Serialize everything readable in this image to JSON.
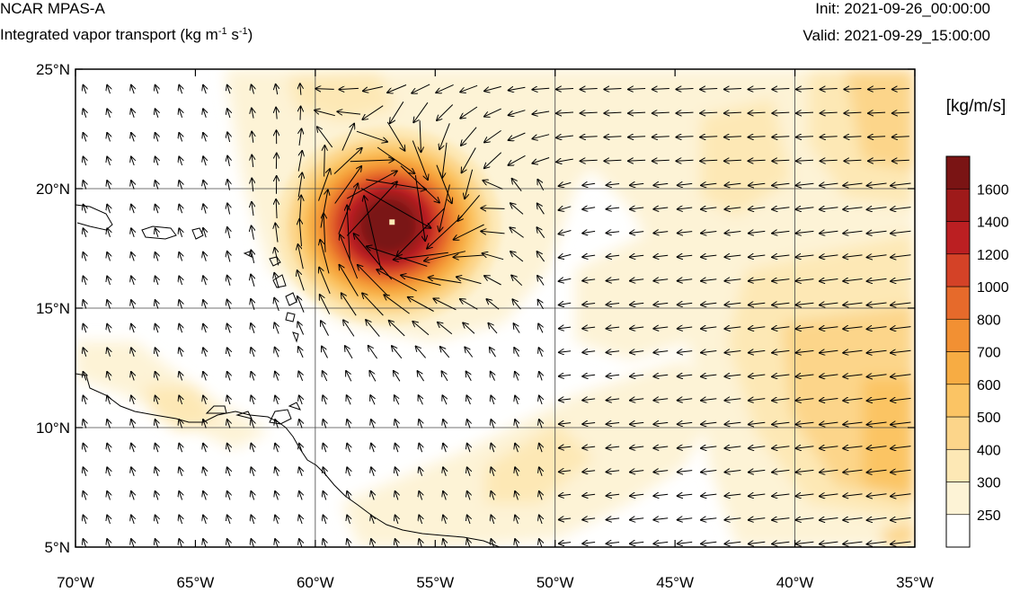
{
  "header": {
    "title": "NCAR MPAS-A",
    "subtitle_main": "Integrated vapor transport (kg m",
    "subtitle_exp1": "-1",
    "subtitle_mid": " s",
    "subtitle_exp2": "-1",
    "subtitle_end": ")",
    "init_label": "Init: 2021-09-26_00:00:00",
    "valid_label": "Valid: 2021-09-29_15:00:00"
  },
  "map": {
    "lon_range": [
      -70,
      -35
    ],
    "lat_range": [
      5,
      25
    ],
    "lon_ticks": [
      "70°W",
      "65°W",
      "60°W",
      "55°W",
      "50°W",
      "45°W",
      "40°W",
      "35°W"
    ],
    "lat_ticks": [
      "25°N",
      "20°N",
      "15°N",
      "10°N",
      "5°N"
    ],
    "gridlines": true,
    "storm_center": {
      "lon": -56.8,
      "lat": 18.6
    },
    "colors": {
      "coastline": "#000000",
      "grid": "#444444",
      "vector": "#000000"
    }
  },
  "colorbar": {
    "unit_label": "[kg/m/s]",
    "levels": [
      "250",
      "300",
      "400",
      "500",
      "600",
      "700",
      "800",
      "1000",
      "1200",
      "1400",
      "1600"
    ],
    "colors": [
      "#ffffff",
      "#fdf3d6",
      "#fde8b5",
      "#fcd58a",
      "#fbc464",
      "#f7ac43",
      "#f29033",
      "#e66a2b",
      "#d44227",
      "#bb1f22",
      "#9e1a1a",
      "#7a1414"
    ]
  }
}
